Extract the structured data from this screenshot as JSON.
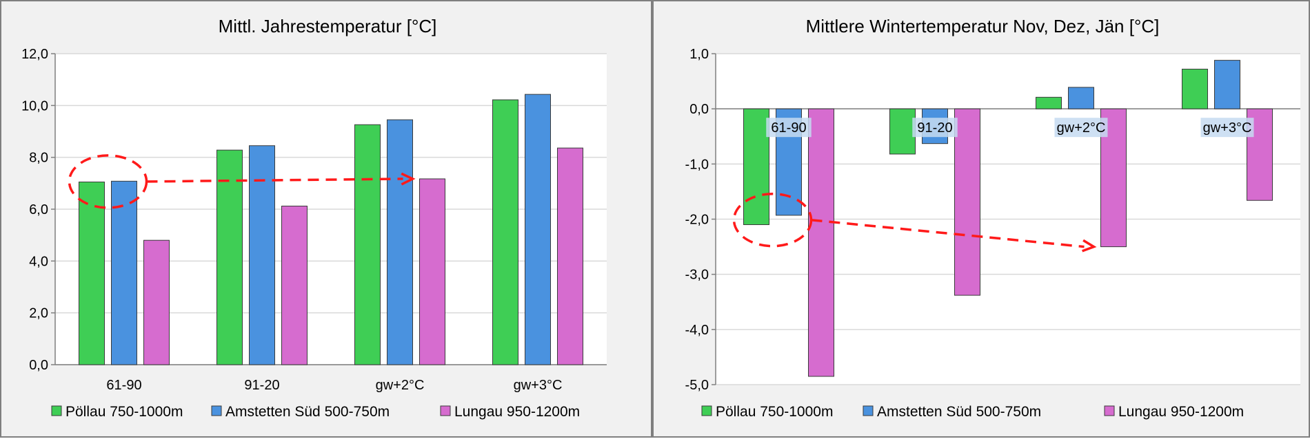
{
  "colors": {
    "series": [
      "#3fce55",
      "#4a92df",
      "#d66ccf"
    ],
    "annotation": "#ff1a1a",
    "grid": "#d9d9d9",
    "plot_bg": "#ffffff",
    "label_bg": "#c6daf1"
  },
  "chart_data": [
    {
      "type": "bar",
      "title": "Mittl. Jahrestemperatur [°C]",
      "categories": [
        "61-90",
        "91-20",
        "gw+2°C",
        "gw+3°C"
      ],
      "series": [
        {
          "name": "Pöllau 750-1000m",
          "values": [
            7.05,
            8.28,
            9.26,
            10.22
          ]
        },
        {
          "name": "Amstetten Süd 500-750m",
          "values": [
            7.08,
            8.45,
            9.45,
            10.43
          ]
        },
        {
          "name": "Lungau 950-1200m",
          "values": [
            4.8,
            6.12,
            7.17,
            8.36
          ]
        }
      ],
      "ylim": [
        0,
        12
      ],
      "yticks": [
        "0,0",
        "2,0",
        "4,0",
        "6,0",
        "8,0",
        "10,0",
        "12,0"
      ],
      "ystep": 2,
      "grid": true,
      "legend": "bottom",
      "annotation": "dashed ellipse around 61-90 Pöllau/Amstetten with dashed arrow pointing to gw+2°C Lungau"
    },
    {
      "type": "bar",
      "title": "Mittlere Wintertemperatur Nov, Dez, Jän [°C]",
      "categories": [
        "61-90",
        "91-20",
        "gw+2°C",
        "gw+3°C"
      ],
      "series": [
        {
          "name": "Pöllau 750-1000m",
          "values": [
            -2.1,
            -0.82,
            0.21,
            0.72
          ]
        },
        {
          "name": "Amstetten Süd 500-750m",
          "values": [
            -1.93,
            -0.63,
            0.39,
            0.88
          ]
        },
        {
          "name": "Lungau 950-1200m",
          "values": [
            -4.85,
            -3.38,
            -2.5,
            -1.66
          ]
        }
      ],
      "ylim": [
        -5,
        1
      ],
      "yticks": [
        "-5,0",
        "-4,0",
        "-3,0",
        "-2,0",
        "-1,0",
        "0,0",
        "1,0"
      ],
      "ystep": 1,
      "grid": true,
      "legend": "bottom",
      "annotation": "dashed ellipse around 61-90 Pöllau/Amstetten with dashed arrow pointing to gw+2°C Lungau"
    }
  ]
}
